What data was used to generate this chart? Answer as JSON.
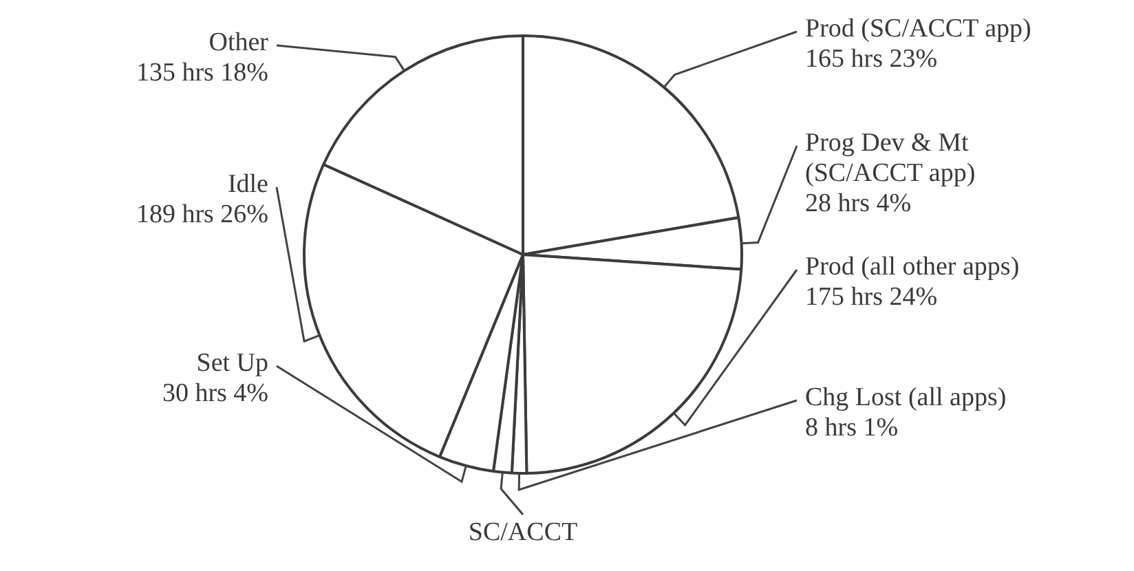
{
  "chart_data": {
    "type": "pie",
    "categories": [
      "Prod (SC/ACCT app)",
      "Prog Dev & Mt (SC/ACCT app)",
      "Prod (all other apps)",
      "Chg Lost (all apps)",
      "SC/ACCT",
      "Set Up",
      "Idle",
      "Other"
    ],
    "values": [
      165,
      28,
      175,
      8,
      10,
      30,
      189,
      135
    ],
    "value_labels": [
      "165 hrs 23%",
      "28 hrs 4%",
      "175 hrs 24%",
      "8 hrs 1%",
      null,
      "30 hrs 4%",
      "189 hrs 26%",
      "135 hrs 18%"
    ],
    "colors": [
      "#ffffff",
      "#ffffff",
      "#ffffff",
      "#ffffff",
      "#ffffff",
      "#ffffff",
      "#ffffff",
      "#ffffff"
    ],
    "legend": false
  }
}
